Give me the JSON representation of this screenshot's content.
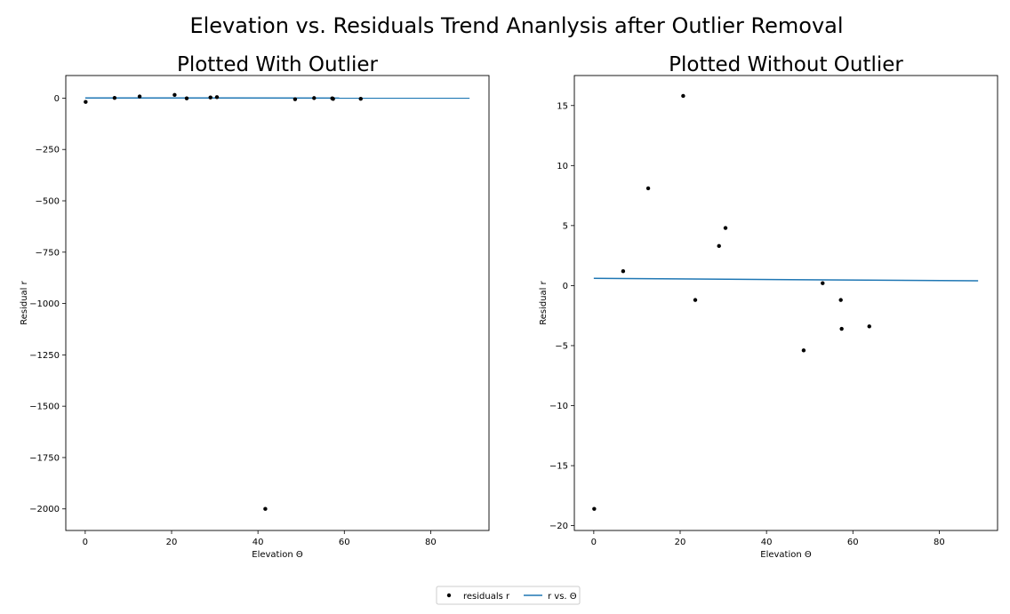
{
  "figure": {
    "title": "Elevation vs. Residuals Trend Ananlysis after Outlier Removal"
  },
  "colors": {
    "points": "#000000",
    "line": "#1f77b4"
  },
  "legend": {
    "placement": "bottom-center",
    "entries": [
      "residuals r",
      "r vs. Θ"
    ]
  },
  "chart_data": [
    {
      "type": "scatter",
      "title": "Plotted With Outlier",
      "xlabel": "Elevation Θ",
      "ylabel": "Residual r",
      "xlim": [
        -4.5,
        93.5
      ],
      "ylim": [
        -2105,
        110
      ],
      "xticks": [
        0,
        20,
        40,
        60,
        80
      ],
      "yticks": [
        0,
        -250,
        -500,
        -750,
        -1000,
        -1250,
        -1500,
        -1750,
        -2000
      ],
      "tick_labels_x": [
        "0",
        "20",
        "40",
        "60",
        "80"
      ],
      "tick_labels_y": [
        "0",
        "−250",
        "−500",
        "−750",
        "−1000",
        "−1250",
        "−1500",
        "−1750",
        "−2000"
      ],
      "grid": false,
      "series": [
        {
          "kind": "points",
          "x": [
            0.1,
            6.8,
            12.6,
            20.7,
            23.5,
            29.0,
            30.5,
            41.7,
            48.6,
            53.0,
            57.2,
            57.4,
            63.8
          ],
          "y": [
            -18.6,
            1.2,
            8.1,
            15.8,
            -1.2,
            3.3,
            4.8,
            -2000,
            -5.4,
            0.2,
            -1.2,
            -3.6,
            -3.4
          ]
        },
        {
          "kind": "line",
          "x": [
            0,
            89
          ],
          "y": [
            0.6,
            0.4
          ]
        }
      ]
    },
    {
      "type": "scatter",
      "title": "Plotted Without Outlier",
      "xlabel": "Elevation Θ",
      "ylabel": "Residual r",
      "xlim": [
        -4.5,
        93.5
      ],
      "ylim": [
        -20.4,
        17.5
      ],
      "xticks": [
        0,
        20,
        40,
        60,
        80
      ],
      "yticks": [
        15,
        10,
        5,
        0,
        -5,
        -10,
        -15,
        -20
      ],
      "tick_labels_x": [
        "0",
        "20",
        "40",
        "60",
        "80"
      ],
      "tick_labels_y": [
        "15",
        "10",
        "5",
        "0",
        "−5",
        "−10",
        "−15",
        "−20"
      ],
      "grid": false,
      "series": [
        {
          "kind": "points",
          "x": [
            0.1,
            6.8,
            12.6,
            20.7,
            23.5,
            29.0,
            30.5,
            48.6,
            53.0,
            57.2,
            57.4,
            63.8
          ],
          "y": [
            -18.6,
            1.2,
            8.1,
            15.8,
            -1.2,
            3.3,
            4.8,
            -5.4,
            0.2,
            -1.2,
            -3.6,
            -3.4
          ]
        },
        {
          "kind": "line",
          "x": [
            0,
            89
          ],
          "y": [
            0.6,
            0.4
          ]
        }
      ]
    }
  ]
}
